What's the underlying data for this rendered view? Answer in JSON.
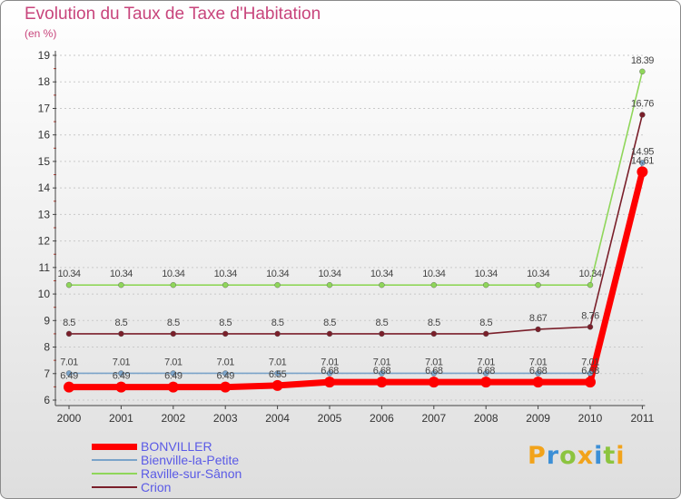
{
  "title": "Evolution du Taux de Taxe d'Habitation",
  "unit_label": "(en %)",
  "chart_data": {
    "type": "line",
    "title": "Evolution du Taux de Taxe d'Habitation",
    "ylabel": "(en %)",
    "xlabel": "",
    "ylim": [
      6,
      19
    ],
    "yticks": [
      "6",
      "7",
      "8",
      "9",
      "10",
      "11",
      "12",
      "13",
      "14",
      "15",
      "16",
      "17",
      "18",
      "19"
    ],
    "categories": [
      "2000",
      "2001",
      "2002",
      "2003",
      "2004",
      "2005",
      "2006",
      "2007",
      "2008",
      "2009",
      "2010",
      "2011"
    ],
    "series": [
      {
        "name": "BONVILLER",
        "color": "#ff0000",
        "values": [
          6.49,
          6.49,
          6.49,
          6.49,
          6.55,
          6.68,
          6.68,
          6.68,
          6.68,
          6.68,
          6.68,
          14.61
        ],
        "labels": [
          "6.49",
          "6.49",
          "6.49",
          "6.49",
          "6.55",
          "6.68",
          "6.68",
          "6.68",
          "6.68",
          "6.68",
          "6.68",
          "14.61"
        ]
      },
      {
        "name": "Bienville-la-Petite",
        "color": "#7aa3c9",
        "values": [
          7.01,
          7.01,
          7.01,
          7.01,
          7.01,
          7.01,
          7.01,
          7.01,
          7.01,
          7.01,
          7.01,
          14.95
        ],
        "labels": [
          "7.01",
          "7.01",
          "7.01",
          "7.01",
          "7.01",
          "7.01",
          "7.01",
          "7.01",
          "7.01",
          "7.01",
          "7.01",
          "14.95"
        ]
      },
      {
        "name": "Raville-sur-Sânon",
        "color": "#8fd65a",
        "values": [
          10.34,
          10.34,
          10.34,
          10.34,
          10.34,
          10.34,
          10.34,
          10.34,
          10.34,
          10.34,
          10.34,
          18.39
        ],
        "labels": [
          "10.34",
          "10.34",
          "10.34",
          "10.34",
          "10.34",
          "10.34",
          "10.34",
          "10.34",
          "10.34",
          "10.34",
          "10.34",
          "18.39"
        ]
      },
      {
        "name": "Crion",
        "color": "#7a1f2a",
        "values": [
          8.5,
          8.5,
          8.5,
          8.5,
          8.5,
          8.5,
          8.5,
          8.5,
          8.5,
          8.67,
          8.76,
          16.76
        ],
        "labels": [
          "8.5",
          "8.5",
          "8.5",
          "8.5",
          "8.5",
          "8.5",
          "8.5",
          "8.5",
          "8.5",
          "8.67",
          "8.76",
          "16.76"
        ]
      }
    ]
  },
  "legend": {
    "items": [
      "BONVILLER",
      "Bienville-la-Petite",
      "Raville-sur-Sânon",
      "Crion"
    ],
    "text_color": "#5a5ae6"
  },
  "logo": {
    "letters": [
      "P",
      "r",
      "o",
      "x",
      "i",
      "t",
      "i"
    ],
    "colors": [
      "#f2a31b",
      "#3c8fd6",
      "#8cc43f",
      "#f2a31b",
      "#3c8fd6",
      "#8cc43f",
      "#f2a31b"
    ]
  }
}
